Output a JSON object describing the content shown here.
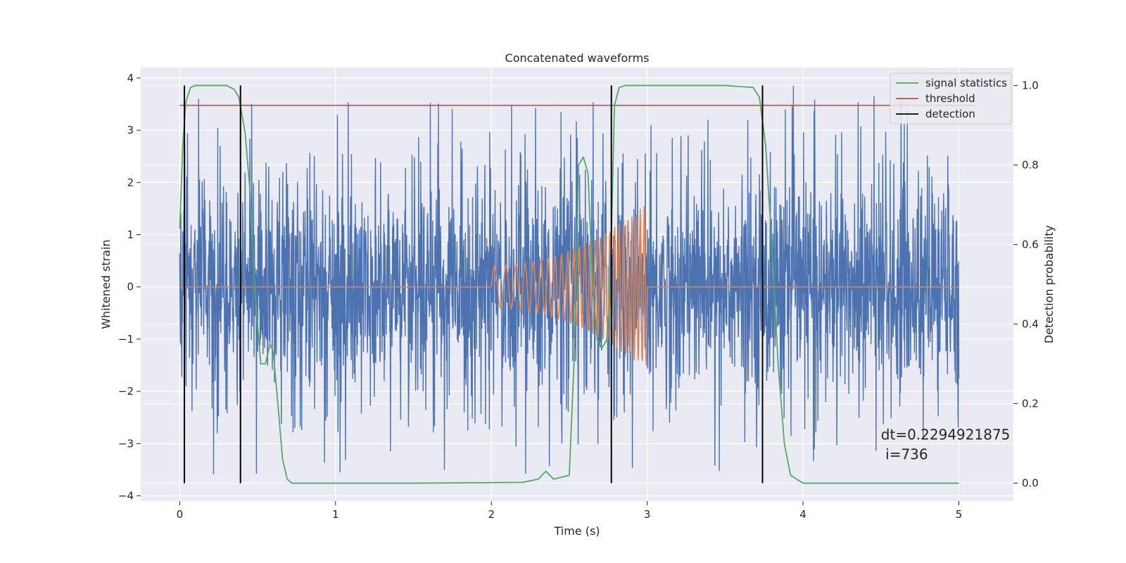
{
  "chart_data": {
    "type": "line",
    "title": "Concatenated waveforms",
    "xlabel": "Time (s)",
    "ylabel": "Whitened strain",
    "y2label": "Detection probability",
    "xlim": [
      -0.25,
      5.35
    ],
    "ylim": [
      -4.1,
      4.2
    ],
    "y2lim": [
      -0.045,
      1.045
    ],
    "xticks": [
      0,
      1,
      2,
      3,
      4,
      5
    ],
    "yticks": [
      -4,
      -3,
      -2,
      -1,
      0,
      1,
      2,
      3,
      4
    ],
    "y2ticks": [
      0.0,
      0.2,
      0.4,
      0.6,
      0.8,
      1.0
    ],
    "xtick_labels": [
      "0",
      "1",
      "2",
      "3",
      "4",
      "5"
    ],
    "ytick_labels": [
      "−4",
      "−3",
      "−2",
      "−1",
      "0",
      "1",
      "2",
      "3",
      "4"
    ],
    "y2tick_labels": [
      "0.0",
      "0.2",
      "0.4",
      "0.6",
      "0.8",
      "1.0"
    ],
    "grid": true,
    "legend_placement": "top-right",
    "colors": {
      "strain": "#4c72b0",
      "waveform": "#dd8452",
      "signal_statistics": "#55a868",
      "threshold": "#c44e52",
      "detection": "#000000",
      "axes_background": "#eaeaf2",
      "grid": "#ffffff"
    },
    "series": [
      {
        "name": "signal statistics",
        "axis": "right",
        "x": [
          0.0,
          0.02,
          0.04,
          0.07,
          0.1,
          0.15,
          0.3,
          0.35,
          0.38,
          0.42,
          0.45,
          0.48,
          0.52,
          0.55,
          0.58,
          0.6,
          0.63,
          0.66,
          0.69,
          0.72,
          0.8,
          1.5,
          2.2,
          2.3,
          2.35,
          2.4,
          2.5,
          2.53,
          2.56,
          2.59,
          2.62,
          2.65,
          2.68,
          2.71,
          2.74,
          2.76,
          2.79,
          2.82,
          2.86,
          2.9,
          3.0,
          3.5,
          3.68,
          3.72,
          3.76,
          3.8,
          3.84,
          3.88,
          3.92,
          4.0,
          4.2,
          5.0
        ],
        "y": [
          0.64,
          0.85,
          0.96,
          0.995,
          1.0,
          1.0,
          1.0,
          0.99,
          0.97,
          0.88,
          0.74,
          0.5,
          0.3,
          0.3,
          0.35,
          0.33,
          0.2,
          0.06,
          0.01,
          0.0,
          0.0,
          0.0,
          0.002,
          0.01,
          0.03,
          0.01,
          0.02,
          0.3,
          0.8,
          0.82,
          0.78,
          0.5,
          0.36,
          0.34,
          0.36,
          0.45,
          0.95,
          0.995,
          1.0,
          1.0,
          1.0,
          1.0,
          0.995,
          0.97,
          0.85,
          0.6,
          0.3,
          0.1,
          0.02,
          0.0,
          0.0,
          0.0
        ]
      },
      {
        "name": "threshold",
        "axis": "right",
        "x": [
          0.0,
          5.1
        ],
        "y": [
          0.95,
          0.95
        ]
      },
      {
        "name": "detection",
        "axis": "right",
        "type": "vlines",
        "x": [
          0.03,
          0.39,
          2.77,
          3.74
        ],
        "ymin": 0.0,
        "ymax": 1.0
      },
      {
        "axis": "left",
        "description": "whitened strain noise",
        "x_range": [
          0.0,
          5.0
        ],
        "typical_amplitude": 1.2,
        "peak_max": 3.85,
        "peak_min": -3.7
      },
      {
        "axis": "left",
        "description": "chirp waveform",
        "x": [
          0.0,
          2.0,
          2.0,
          3.0,
          3.0,
          5.0
        ],
        "envelope": [
          0.0,
          0.0,
          0.4,
          1.6,
          0.0,
          0.0
        ],
        "chirp_window": [
          2.0,
          3.0
        ]
      }
    ],
    "annotations": [
      {
        "text_lines": [
          "dt=0.2294921875",
          " i=736"
        ],
        "x": 4.5,
        "y": -3.0
      }
    ]
  }
}
